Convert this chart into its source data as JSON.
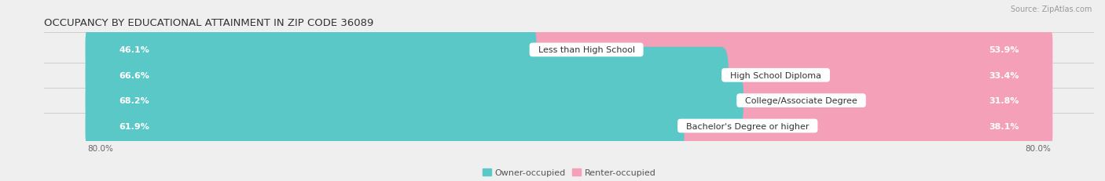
{
  "title": "OCCUPANCY BY EDUCATIONAL ATTAINMENT IN ZIP CODE 36089",
  "source": "Source: ZipAtlas.com",
  "categories": [
    "Less than High School",
    "High School Diploma",
    "College/Associate Degree",
    "Bachelor's Degree or higher"
  ],
  "owner_values": [
    46.1,
    66.6,
    68.2,
    61.9
  ],
  "renter_values": [
    53.9,
    33.4,
    31.8,
    38.1
  ],
  "owner_color": "#5bc8c8",
  "renter_color": "#f4a0b8",
  "background_color": "#efefef",
  "bar_background": "#ffffff",
  "total_width": 100.0,
  "owner_label": "Owner-occupied",
  "renter_label": "Renter-occupied",
  "title_fontsize": 9.5,
  "label_fontsize": 8.0,
  "value_fontsize": 8.0,
  "tick_fontsize": 7.5,
  "source_fontsize": 7.0,
  "left_tick": "80.0%",
  "right_tick": "80.0%"
}
